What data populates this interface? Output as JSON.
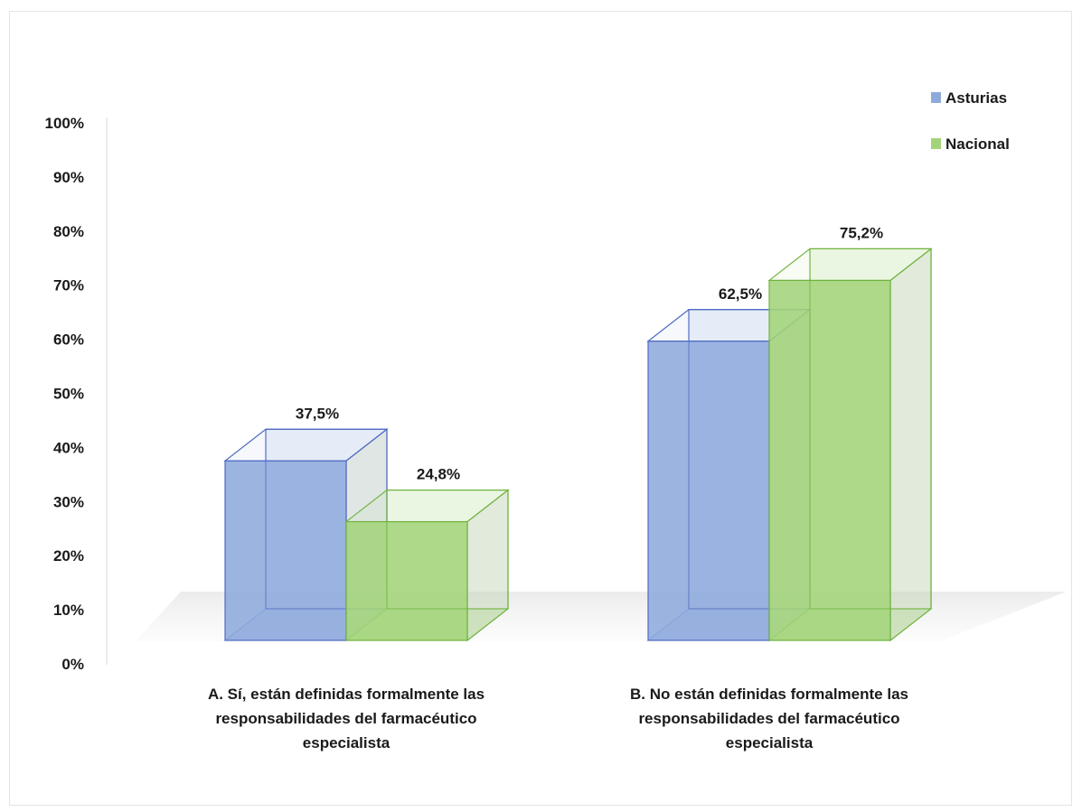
{
  "chart_data": {
    "type": "bar",
    "style": "3d-clustered",
    "categories": [
      [
        "A. Sí, están definidas formalmente las",
        "responsabilidades del farmacéutico",
        "especialista"
      ],
      [
        "B. No están definidas formalmente las",
        "responsabilidades del farmacéutico",
        "especialista"
      ]
    ],
    "series": [
      {
        "name": "Asturias",
        "values": [
          37.5,
          62.5
        ],
        "labels": [
          "37,5%",
          "62,5%"
        ],
        "color": "#8eaadc",
        "edge": "#4f6bc4"
      },
      {
        "name": "Nacional",
        "values": [
          24.8,
          75.2
        ],
        "labels": [
          "24,8%",
          "75,2%"
        ],
        "color": "#a3d47a",
        "edge": "#6fb33f"
      }
    ],
    "ylim": [
      0,
      100
    ],
    "yticks": [
      "0%",
      "10%",
      "20%",
      "30%",
      "40%",
      "50%",
      "60%",
      "70%",
      "80%",
      "90%",
      "100%"
    ],
    "legend_position": "top-right",
    "grid": false
  }
}
